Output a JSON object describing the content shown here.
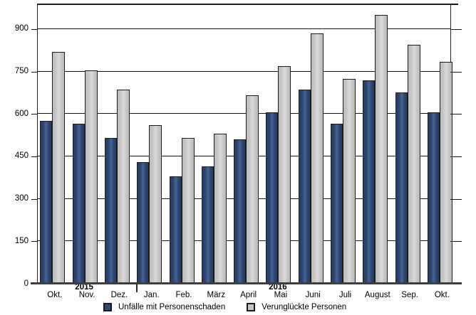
{
  "chart_data": {
    "type": "bar",
    "title": "",
    "xlabel": "",
    "ylabel": "",
    "categories": [
      "Okt.",
      "Nov.",
      "Dez.",
      "Jan.",
      "Feb.",
      "März",
      "April",
      "Mai",
      "Juni",
      "Juli",
      "August",
      "Sep.",
      "Okt."
    ],
    "series": [
      {
        "name": "Unfälle mit Personenschaden",
        "color": "#2e4a77",
        "values": [
          575,
          565,
          515,
          430,
          380,
          415,
          510,
          605,
          685,
          565,
          720,
          675,
          605
        ]
      },
      {
        "name": "Verunglückte Personen",
        "color": "#c7c7c7",
        "values": [
          820,
          755,
          685,
          560,
          515,
          530,
          665,
          770,
          885,
          725,
          950,
          845,
          785
        ]
      }
    ],
    "year_labels": [
      {
        "text": "2015",
        "category_index": 1
      },
      {
        "text": "2016",
        "category_index": 7
      }
    ],
    "year_separator_after_index": 2,
    "yticks": [
      0,
      150,
      300,
      450,
      600,
      750,
      900
    ],
    "ylim": [
      0,
      990
    ],
    "grid": true,
    "legend_position": "bottom"
  },
  "colors": {
    "bar_dark": "#2e4a77",
    "bar_light": "#c7c7c7",
    "gridline": "#161616",
    "axis": "#3e3e3e",
    "background": "#ffffff"
  }
}
